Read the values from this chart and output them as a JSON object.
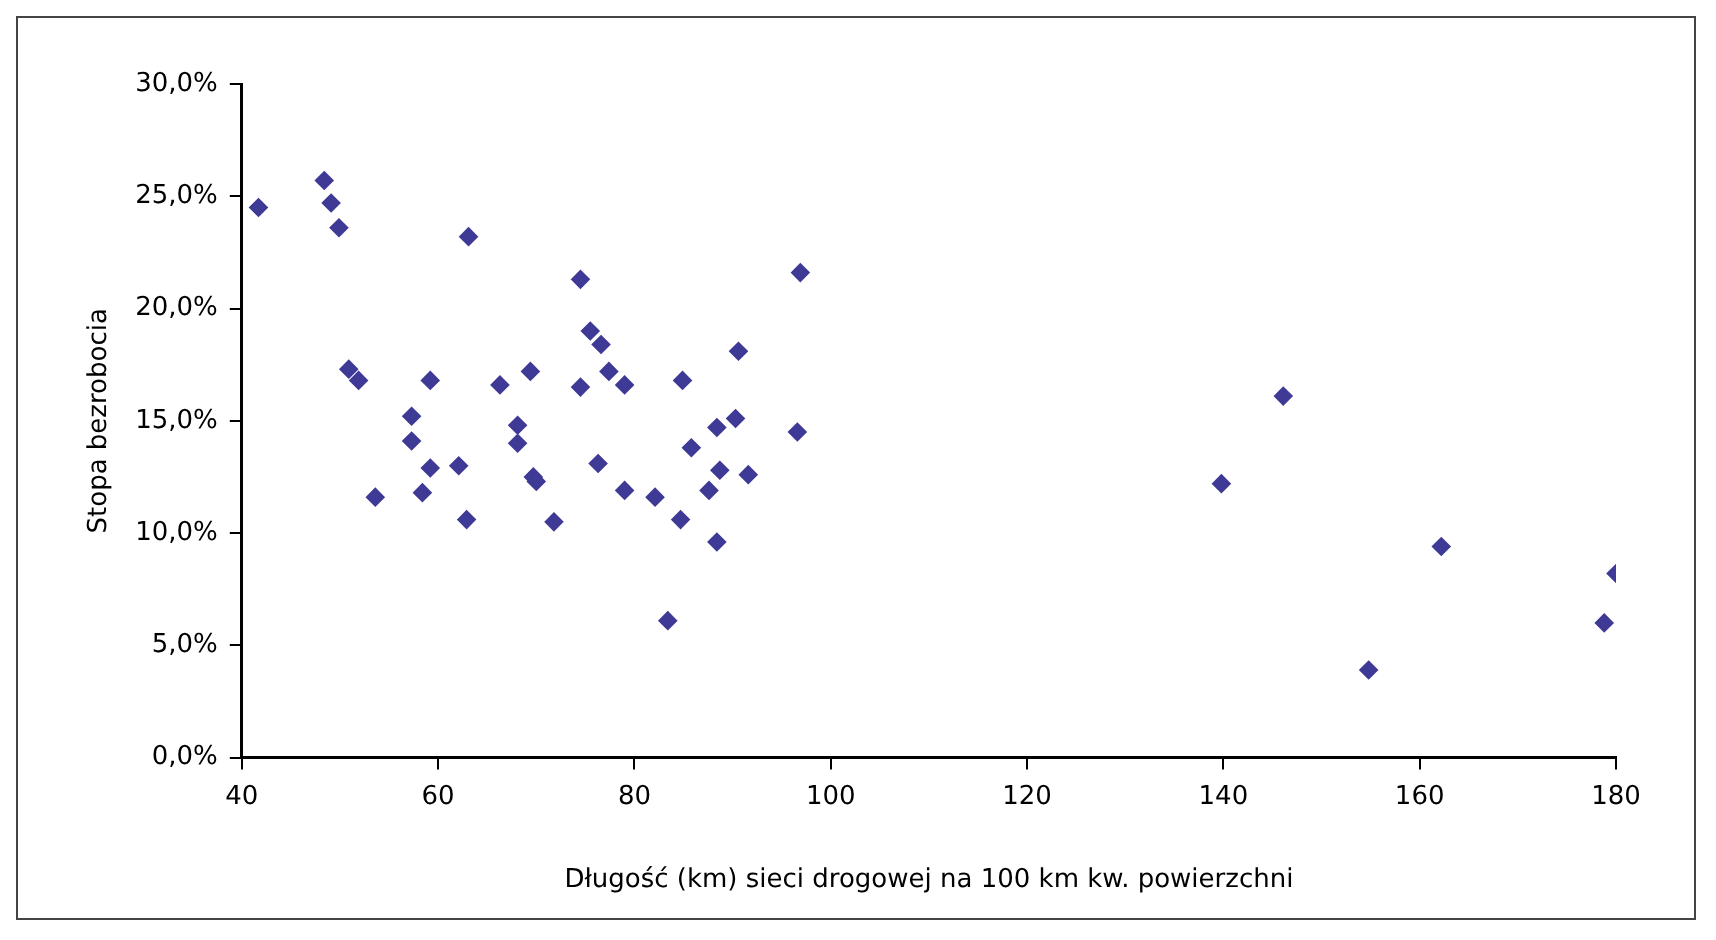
{
  "chart_data": {
    "type": "scatter",
    "xlabel": "Długość (km) sieci drogowej na 100 km kw. powierzchni",
    "ylabel": "Stopa bezrobocia",
    "x": [
      41.7,
      48.4,
      49.1,
      49.9,
      63.1,
      50.9,
      51.9,
      59.2,
      66.3,
      57.3,
      57.3,
      68.1,
      68.1,
      59.2,
      62.1,
      53.6,
      58.4,
      62.9,
      74.5,
      96.9,
      75.5,
      76.6,
      90.6,
      69.4,
      74.5,
      77.4,
      79.0,
      84.9,
      88.4,
      90.3,
      96.6,
      85.8,
      76.3,
      69.7,
      70.0,
      88.7,
      91.6,
      79.0,
      82.1,
      87.6,
      71.8,
      84.7,
      88.4,
      83.4,
      146.1,
      139.8,
      162.2,
      180.0,
      178.8,
      154.8
    ],
    "values": [
      24.5,
      25.7,
      24.7,
      23.6,
      23.2,
      17.3,
      16.8,
      16.8,
      16.6,
      15.2,
      14.1,
      14.8,
      14.0,
      12.9,
      13.0,
      11.6,
      11.8,
      10.6,
      21.3,
      21.6,
      19.0,
      18.4,
      18.1,
      17.2,
      16.5,
      17.2,
      16.6,
      16.8,
      14.7,
      15.1,
      14.5,
      13.8,
      13.1,
      12.5,
      12.3,
      12.8,
      12.6,
      11.9,
      11.6,
      11.9,
      10.5,
      10.6,
      9.6,
      6.1,
      16.1,
      12.2,
      9.4,
      8.2,
      6.0,
      3.9
    ],
    "color": "#3f3a96",
    "marker": "diamond",
    "xlim": [
      40,
      180
    ],
    "xticks": [
      40,
      60,
      80,
      100,
      120,
      140,
      160,
      180
    ],
    "ylim": [
      0,
      30
    ],
    "yticks": [
      {
        "value": 0,
        "label": "0,0%"
      },
      {
        "value": 5,
        "label": "5,0%"
      },
      {
        "value": 10,
        "label": "10,0%"
      },
      {
        "value": 15,
        "label": "15,0%"
      },
      {
        "value": 20,
        "label": "20,0%"
      },
      {
        "value": 25,
        "label": "25,0%"
      },
      {
        "value": 30,
        "label": "30,0%"
      }
    ],
    "grid": false,
    "legend": false
  }
}
